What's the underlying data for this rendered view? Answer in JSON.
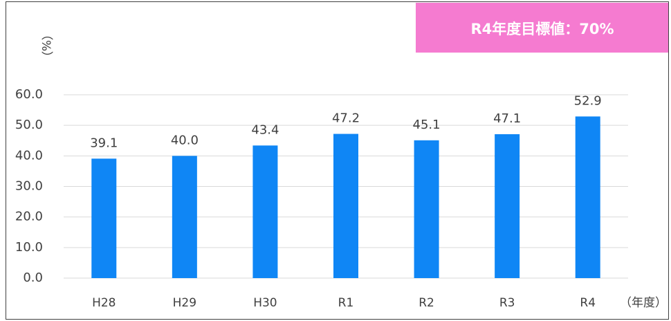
{
  "chart_data": {
    "type": "bar",
    "ylabel": "（%）",
    "xlabel": "（年度）",
    "annotation": "R4年度目標値：70%",
    "categories": [
      "H28",
      "H29",
      "H30",
      "R1",
      "R2",
      "R3",
      "R4"
    ],
    "values": [
      39.1,
      40.0,
      43.4,
      47.2,
      45.1,
      47.1,
      52.9
    ],
    "value_labels": [
      "39.1",
      "40.0",
      "43.4",
      "47.2",
      "45.1",
      "47.1",
      "52.9"
    ],
    "color": "#0f86f5",
    "ylim": [
      0,
      60
    ],
    "yticks": [
      {
        "value": 0,
        "label": "0.0"
      },
      {
        "value": 10,
        "label": "10.0"
      },
      {
        "value": 20,
        "label": "20.0"
      },
      {
        "value": 30,
        "label": "30.0"
      },
      {
        "value": 40,
        "label": "40.0"
      },
      {
        "value": 50,
        "label": "50.0"
      },
      {
        "value": 60,
        "label": "60.0"
      }
    ],
    "grid": true
  }
}
